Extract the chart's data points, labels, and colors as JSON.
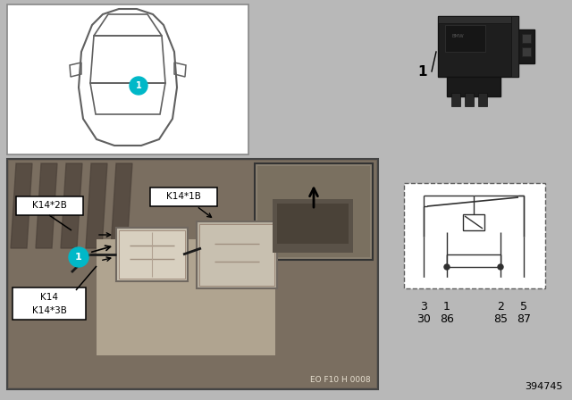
{
  "bg_color": "#b8b8b8",
  "white": "#ffffff",
  "black": "#000000",
  "cyan_color": "#00b8c8",
  "label_k14": "K14",
  "label_k14_3b": "K14*3B",
  "label_k14_2b": "K14*2B",
  "label_k14_1b": "K14*1B",
  "diagram_code": "EO F10 H 0008",
  "part_number": "394745",
  "pin_labels_top": [
    "3",
    "1",
    "2",
    "5"
  ],
  "pin_labels_bottom": [
    "30",
    "86",
    "85",
    "87"
  ],
  "relay_label": "1",
  "car_outline_color": "#606060",
  "photo_bg": "#7a6e60",
  "photo_border": "#444444",
  "inset_bg": "#9a8e80"
}
